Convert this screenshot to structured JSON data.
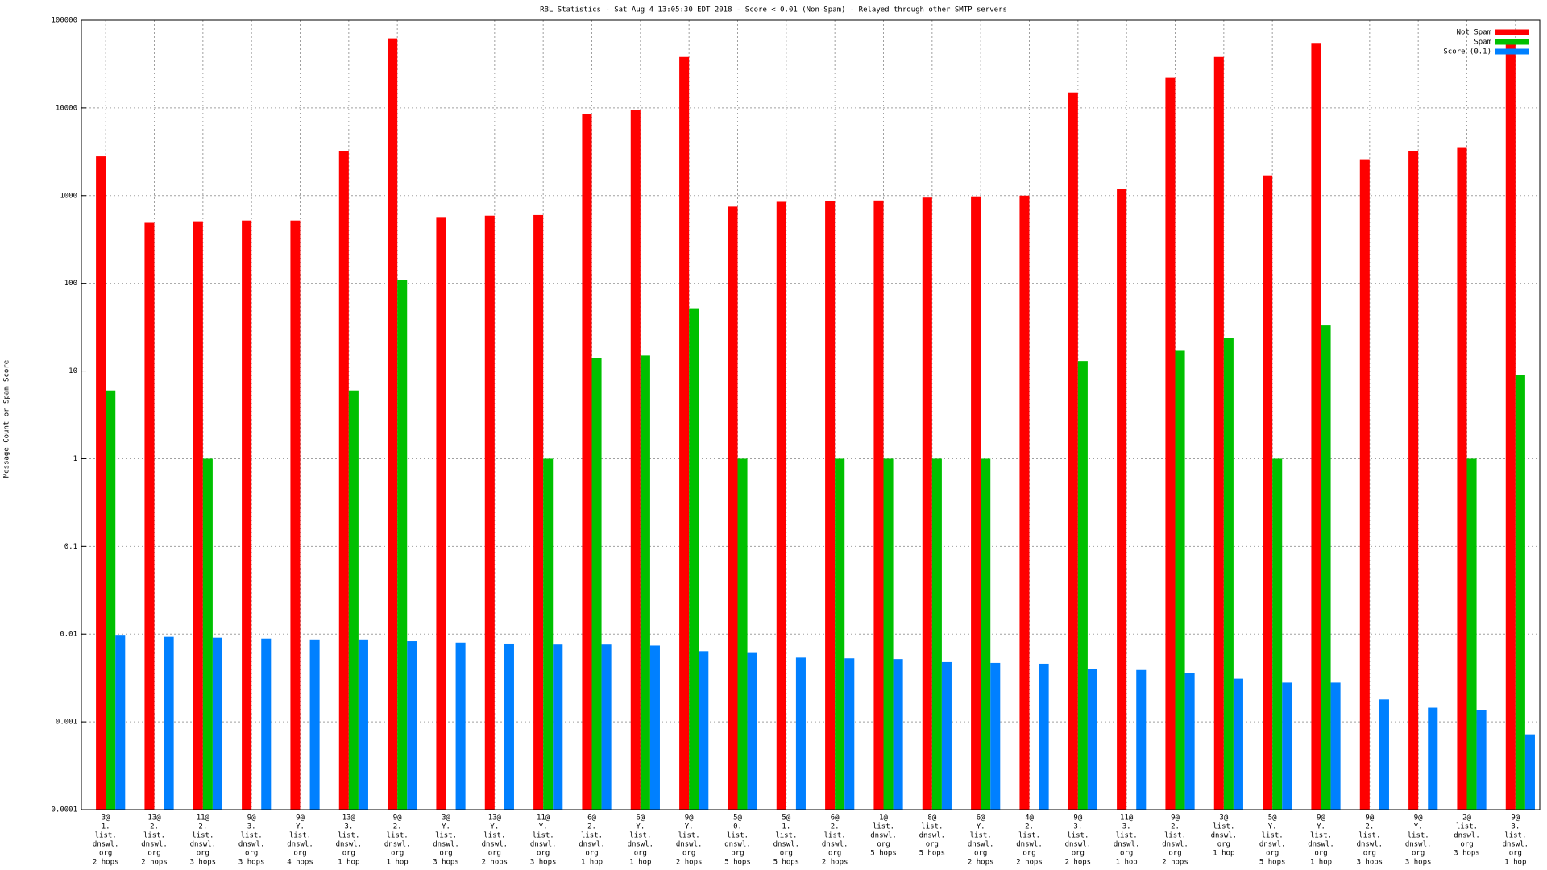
{
  "chart_data": {
    "type": "bar",
    "title": "RBL Statistics - Sat Aug  4 13:05:30 EDT 2018 - Score < 0.01 (Non-Spam) - Relayed through other SMTP servers",
    "y_label": "Message Count or Spam Score",
    "log_scale": true,
    "grid": true,
    "legend": "top-right",
    "categories": [
      [
        "3@",
        "1.",
        "list.",
        "dnswl.",
        "org",
        "2 hops"
      ],
      [
        "13@",
        "2.",
        "list.",
        "dnswl.",
        "org",
        "2 hops"
      ],
      [
        "11@",
        "2.",
        "list.",
        "dnswl.",
        "org",
        "3 hops"
      ],
      [
        "9@",
        "3.",
        "list.",
        "dnswl.",
        "org",
        "3 hops"
      ],
      [
        "9@",
        "Y.",
        "list.",
        "dnswl.",
        "org",
        "4 hops"
      ],
      [
        "13@",
        "3.",
        "list.",
        "dnswl.",
        "org",
        "1 hop"
      ],
      [
        "9@",
        "2.",
        "list.",
        "dnswl.",
        "org",
        "1 hop"
      ],
      [
        "3@",
        "Y.",
        "list.",
        "dnswl.",
        "org",
        "3 hops"
      ],
      [
        "13@",
        "Y.",
        "list.",
        "dnswl.",
        "org",
        "2 hops"
      ],
      [
        "11@",
        "Y.",
        "list.",
        "dnswl.",
        "org",
        "3 hops"
      ],
      [
        "6@",
        "2.",
        "list.",
        "dnswl.",
        "org",
        "1 hop"
      ],
      [
        "6@",
        "Y.",
        "list.",
        "dnswl.",
        "org",
        "1 hop"
      ],
      [
        "9@",
        "Y.",
        "list.",
        "dnswl.",
        "org",
        "2 hops"
      ],
      [
        "5@",
        "0.",
        "list.",
        "dnswl.",
        "org",
        "5 hops"
      ],
      [
        "5@",
        "1.",
        "list.",
        "dnswl.",
        "org",
        "5 hops"
      ],
      [
        "6@",
        "2.",
        "list.",
        "dnswl.",
        "org",
        "2 hops"
      ],
      [
        "1@",
        "list.",
        "dnswl.",
        "org",
        "5 hops"
      ],
      [
        "8@",
        "list.",
        "dnswl.",
        "org",
        "5 hops"
      ],
      [
        "6@",
        "Y.",
        "list.",
        "dnswl.",
        "org",
        "2 hops"
      ],
      [
        "4@",
        "2.",
        "list.",
        "dnswl.",
        "org",
        "2 hops"
      ],
      [
        "9@",
        "3.",
        "list.",
        "dnswl.",
        "org",
        "2 hops"
      ],
      [
        "11@",
        "3.",
        "list.",
        "dnswl.",
        "org",
        "1 hop"
      ],
      [
        "9@",
        "2.",
        "list.",
        "dnswl.",
        "org",
        "2 hops"
      ],
      [
        "3@",
        "list.",
        "dnswl.",
        "org",
        "1 hop"
      ],
      [
        "5@",
        "Y.",
        "list.",
        "dnswl.",
        "org",
        "5 hops"
      ],
      [
        "9@",
        "Y.",
        "list.",
        "dnswl.",
        "org",
        "1 hop"
      ],
      [
        "9@",
        "2.",
        "list.",
        "dnswl.",
        "org",
        "3 hops"
      ],
      [
        "9@",
        "Y.",
        "list.",
        "dnswl.",
        "org",
        "3 hops"
      ],
      [
        "2@",
        "list.",
        "dnswl.",
        "org",
        "3 hops"
      ],
      [
        "9@",
        "3.",
        "list.",
        "dnswl.",
        "org",
        "1 hop"
      ]
    ],
    "series": [
      {
        "name": "Not Spam",
        "color": "#ff0000",
        "values": [
          2800,
          490,
          510,
          520,
          520,
          3200,
          62000,
          570,
          590,
          600,
          8500,
          9500,
          38000,
          750,
          850,
          870,
          880,
          950,
          980,
          1000,
          15000,
          1200,
          22000,
          38000,
          1700,
          55000,
          2600,
          3200,
          3500,
          60000
        ]
      },
      {
        "name": "Spam",
        "color": "#00c000",
        "values": [
          6,
          null,
          1,
          null,
          null,
          6,
          110,
          null,
          null,
          1,
          14,
          15,
          52,
          1,
          null,
          1,
          1,
          1,
          1,
          null,
          13,
          null,
          17,
          24,
          1,
          33,
          null,
          null,
          1,
          9
        ]
      },
      {
        "name": "Score (0.1)",
        "color": "#0080ff",
        "values": [
          0.0098,
          0.0093,
          0.0091,
          0.0089,
          0.0087,
          0.0087,
          0.0083,
          0.008,
          0.0078,
          0.0076,
          0.0076,
          0.0074,
          0.0064,
          0.0061,
          0.0054,
          0.0053,
          0.0052,
          0.0048,
          0.0047,
          0.0046,
          0.004,
          0.0039,
          0.0036,
          0.0031,
          0.0028,
          0.0028,
          0.0018,
          0.00145,
          0.00135,
          0.00072
        ]
      }
    ],
    "ylim": [
      0.0001,
      100000
    ],
    "yticks": [
      0.0001,
      0.001,
      0.01,
      0.1,
      1,
      10,
      100,
      1000,
      10000,
      100000
    ]
  }
}
